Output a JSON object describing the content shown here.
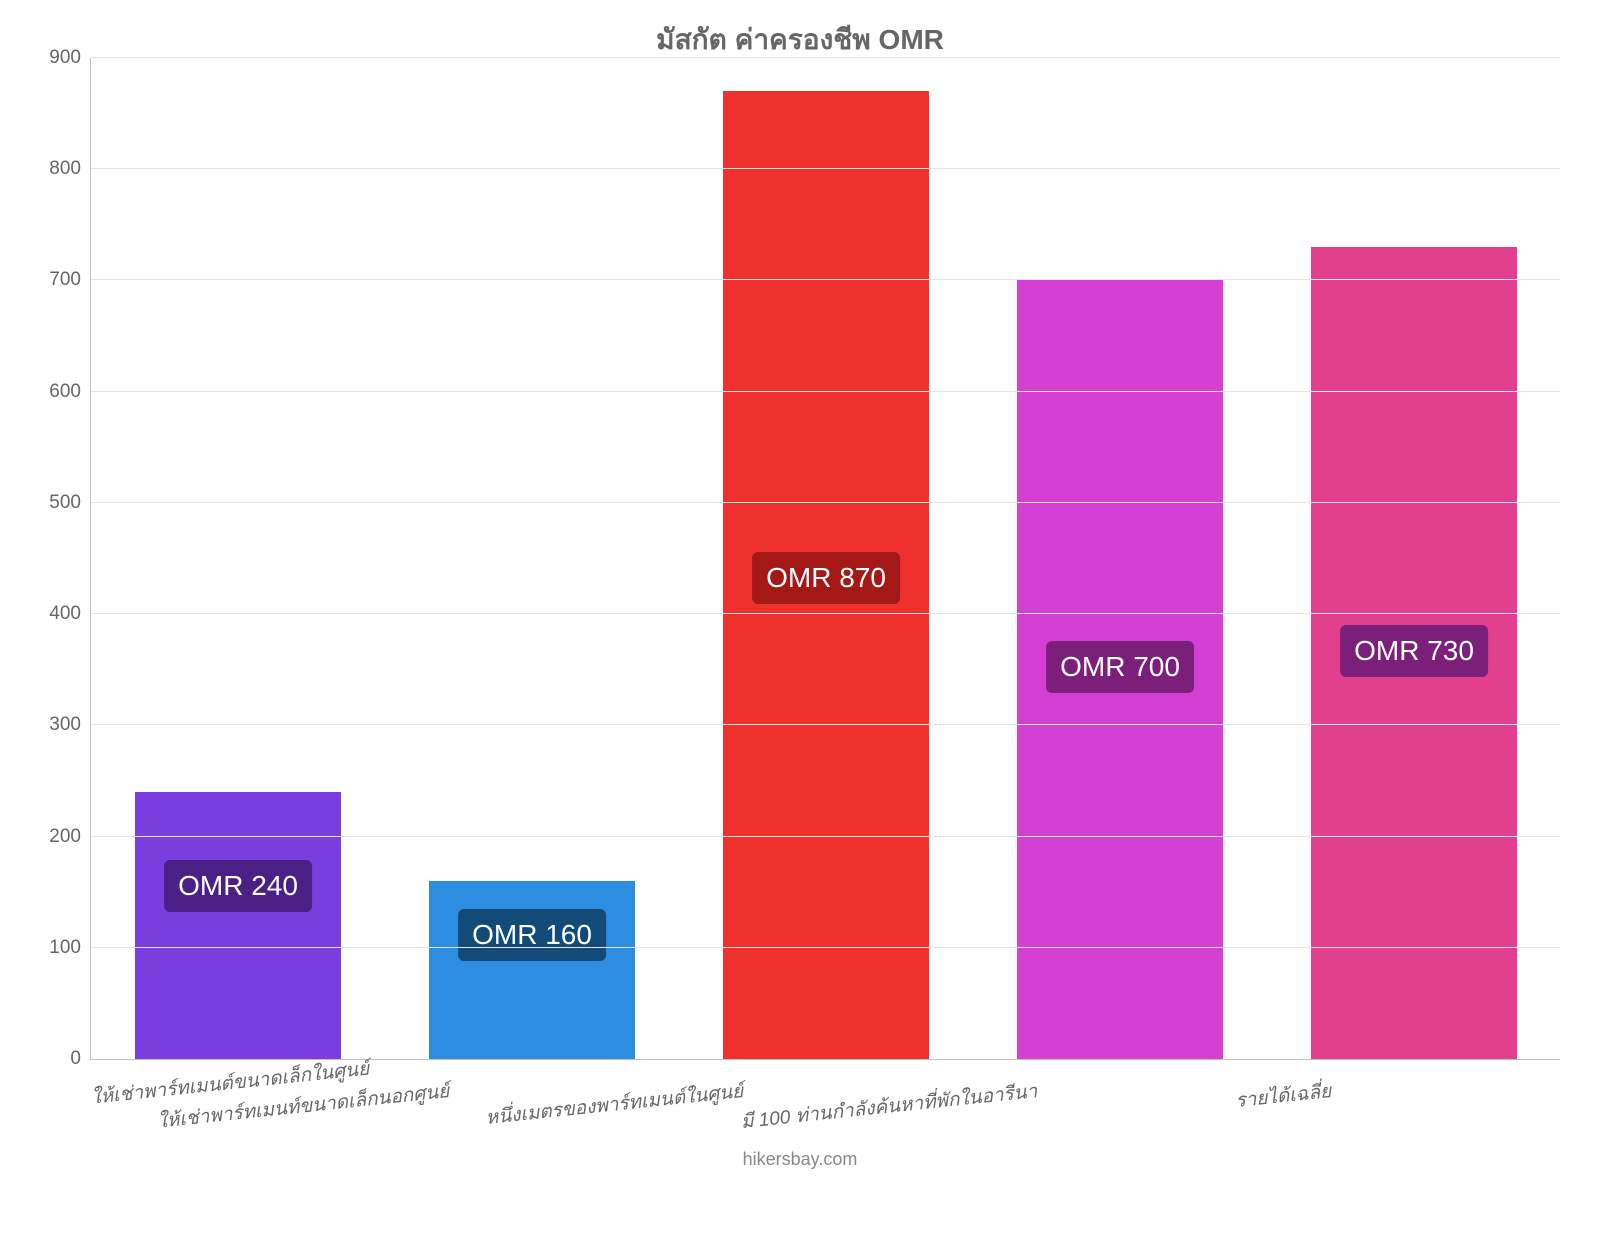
{
  "chart": {
    "type": "bar",
    "title": "มัสกัต ค่าครองชีพ OMR",
    "title_fontsize": 28,
    "title_color": "#666666",
    "background_color": "#ffffff",
    "grid_color": "#e5e5e5",
    "axis_color": "#c0c0c0",
    "ylim": [
      0,
      900
    ],
    "ytick_step": 100,
    "yticks": [
      0,
      100,
      200,
      300,
      400,
      500,
      600,
      700,
      800,
      900
    ],
    "tick_fontsize": 19,
    "tick_color": "#666666",
    "bar_width_ratio": 0.7,
    "categories": [
      "ให้เช่าพาร์ทเมนต์ขนาดเล็กในศูนย์",
      "ให้เช่าพาร์ทเมนท์ขนาดเล็กนอกศูนย์",
      "หนึ่งเมตรของพาร์ทเมนต์ในศูนย์",
      "มี 100 ท่านกำลังค้นหาที่พักในอารีนา",
      "รายได้เฉลี่ย"
    ],
    "values": [
      240,
      160,
      870,
      700,
      730
    ],
    "bar_colors": [
      "#7a3ede",
      "#2d8de0",
      "#ef312e",
      "#d63fd3",
      "#e23f8f"
    ],
    "value_labels": [
      "OMR 240",
      "OMR 160",
      "OMR 870",
      "OMR 700",
      "OMR 730"
    ],
    "value_badge_colors": [
      "#4a1f86",
      "#124a78",
      "#a41815",
      "#7c1f7a",
      "#7c1f7a"
    ],
    "value_label_fontsize": 28,
    "value_label_color": "#ffffff",
    "x_label_fontsize": 19,
    "x_label_rotate_deg": -6,
    "x_label_color": "#666666",
    "footer": "hikersbay.com",
    "footer_color": "#888888",
    "footer_fontsize": 18
  }
}
